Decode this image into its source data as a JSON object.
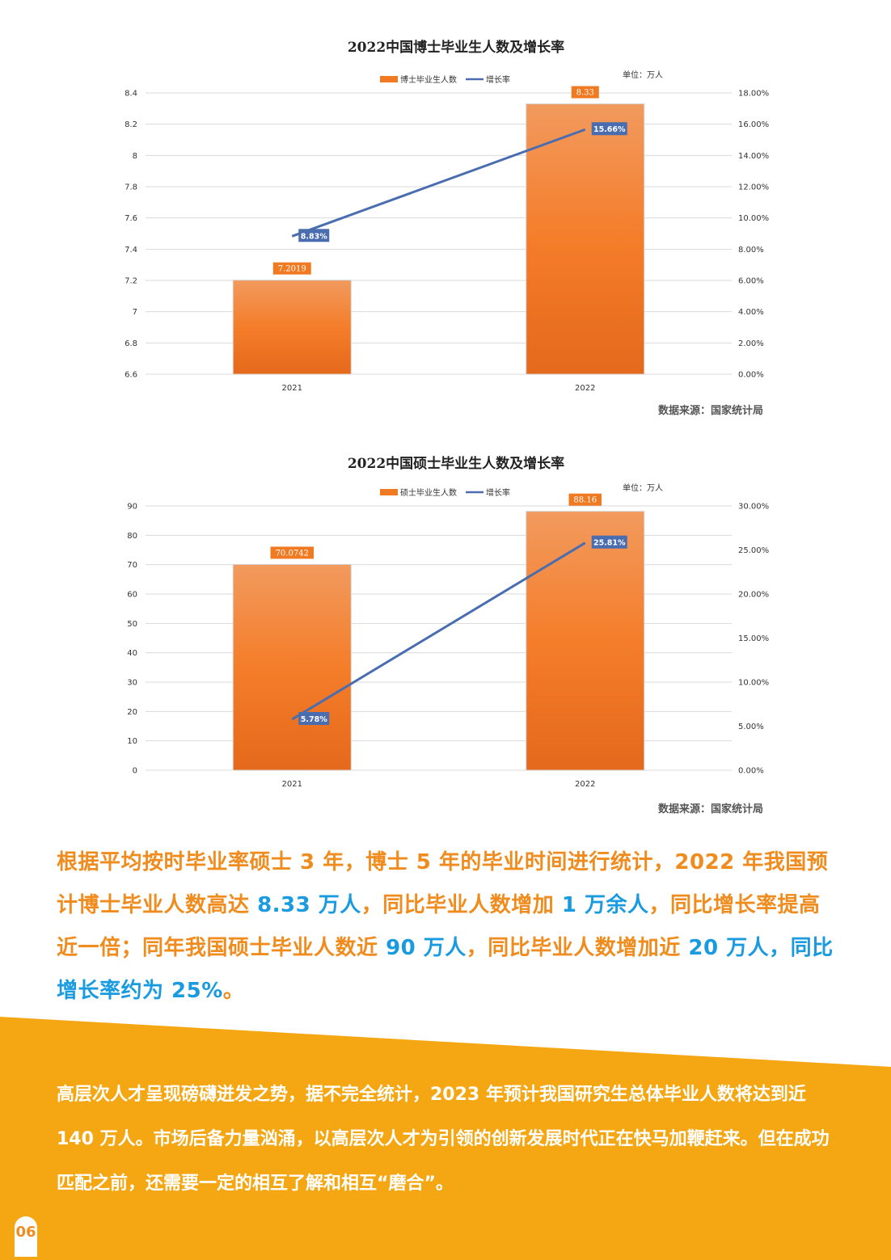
{
  "charts": [
    {
      "title": "2022中国博士毕业生人数及增长率",
      "legend_bar": "博士毕业生人数",
      "legend_line": "增长率",
      "unit": "单位：万人",
      "source": "数据来源：国家统计局"
    },
    {
      "title": "2022中国硕士毕业生人数及增长率",
      "legend_bar": "硕士毕业生人数",
      "legend_line": "增长率",
      "unit": "单位：万人",
      "source": "数据来源：国家统计局"
    }
  ],
  "chart_data": [
    {
      "type": "bar",
      "title": "2022中国博士毕业生人数及增长率",
      "categories": [
        "2021",
        "2022"
      ],
      "series": [
        {
          "name": "博士毕业生人数",
          "values": [
            7.2019,
            8.33
          ],
          "labels": [
            "7.2019",
            "8.33"
          ],
          "axis": "left"
        },
        {
          "name": "增长率",
          "type": "line",
          "values": [
            8.83,
            15.66
          ],
          "labels": [
            "8.83%",
            "15.66%"
          ],
          "axis": "right"
        }
      ],
      "ylim": [
        6.6,
        8.4
      ],
      "yticks": [
        "6.6",
        "6.8",
        "7",
        "7.2",
        "7.4",
        "7.6",
        "7.8",
        "8",
        "8.2",
        "8.4"
      ],
      "y2lim": [
        0,
        18
      ],
      "y2ticks": [
        "0.00%",
        "2.00%",
        "4.00%",
        "6.00%",
        "8.00%",
        "10.00%",
        "12.00%",
        "14.00%",
        "16.00%",
        "18.00%"
      ],
      "legend": "top",
      "grid": true,
      "colors": {
        "bar": "#f07a22",
        "line": "#4a6db0"
      }
    },
    {
      "type": "bar",
      "title": "2022中国硕士毕业生人数及增长率",
      "categories": [
        "2021",
        "2022"
      ],
      "series": [
        {
          "name": "硕士毕业生人数",
          "values": [
            70.0742,
            88.16
          ],
          "labels": [
            "70.0742",
            "88.16"
          ],
          "axis": "left"
        },
        {
          "name": "增长率",
          "type": "line",
          "values": [
            5.78,
            25.81
          ],
          "labels": [
            "5.78%",
            "25.81%"
          ],
          "axis": "right"
        }
      ],
      "ylim": [
        0,
        90
      ],
      "yticks": [
        "0",
        "10",
        "20",
        "30",
        "40",
        "50",
        "60",
        "70",
        "80",
        "90"
      ],
      "y2lim": [
        0,
        30
      ],
      "y2ticks": [
        "0.00%",
        "5.00%",
        "10.00%",
        "15.00%",
        "20.00%",
        "25.00%",
        "30.00%"
      ],
      "legend": "top",
      "grid": true,
      "colors": {
        "bar": "#f07a22",
        "line": "#4a6db0"
      }
    }
  ],
  "paragraph1": {
    "p1": "根据平均按时毕业率硕士 3 年，博士 5 年的毕业时间进行统计，2022 年我国预计博士毕业人数高达 ",
    "h1": "8.33 万人",
    "p2": "，同比毕业人数增加 ",
    "h2": "1 万余人",
    "p3": "，同比增长率提高近一倍；同年我国硕士毕业人数近 ",
    "h3": "90 万人",
    "p4": "，同比毕业人数增加近 ",
    "h4": "20 万人，同比增长率约为 25%",
    "p5": "。"
  },
  "paragraph2": "高层次人才呈现磅礴迸发之势，据不完全统计，2023 年预计我国研究生总体毕业人数将达到近 140 万人。市场后备力量汹涌，以高层次人才为引领的创新发展时代正在快马加鞭赶来。但在成功匹配之前，还需要一定的相互了解和相互“磨合”。",
  "page_number": "06",
  "colors": {
    "accent_orange": "#f08c1e",
    "highlight_blue": "#1a9be0",
    "band": "#f5a713"
  }
}
